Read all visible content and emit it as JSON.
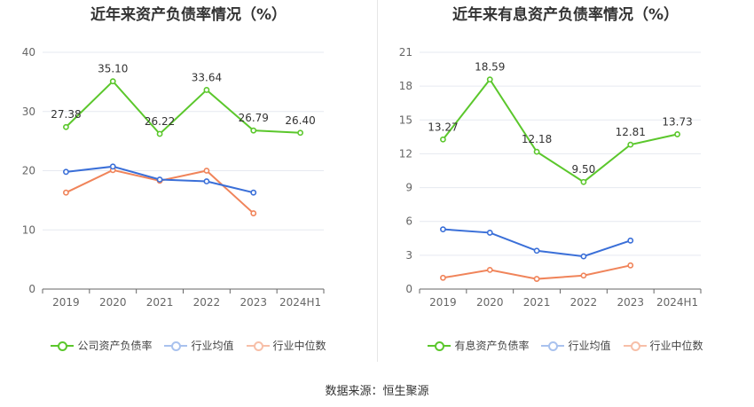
{
  "source": "数据来源：恒生聚源",
  "chart_data": [
    {
      "type": "line",
      "title": "近年来资产负债率情况（%）",
      "categories": [
        "2019",
        "2020",
        "2021",
        "2022",
        "2023",
        "2024H1"
      ],
      "yticks": [
        "0",
        "10",
        "20",
        "30",
        "40"
      ],
      "ylim": [
        0,
        40
      ],
      "grid": true,
      "legend_position": "bottom",
      "series": [
        {
          "name": "公司资产负债率",
          "color": "#5bc72c",
          "values": [
            27.38,
            35.1,
            26.22,
            33.64,
            26.79,
            26.4
          ],
          "labels": [
            "27.38",
            "35.10",
            "26.22",
            "33.64",
            "26.79",
            "26.40"
          ]
        },
        {
          "name": "行业均值",
          "color": "#3a6fd8",
          "values": [
            19.8,
            20.7,
            18.5,
            18.2,
            16.3,
            null
          ]
        },
        {
          "name": "行业中位数",
          "color": "#f0845a",
          "values": [
            16.3,
            20.1,
            18.3,
            20.0,
            12.8,
            null
          ]
        }
      ]
    },
    {
      "type": "line",
      "title": "近年来有息资产负债率情况（%）",
      "categories": [
        "2019",
        "2020",
        "2021",
        "2022",
        "2023",
        "2024H1"
      ],
      "yticks": [
        "0",
        "3",
        "6",
        "9",
        "12",
        "15",
        "18",
        "21"
      ],
      "ylim": [
        0,
        21
      ],
      "grid": true,
      "legend_position": "bottom",
      "series": [
        {
          "name": "有息资产负债率",
          "color": "#5bc72c",
          "values": [
            13.27,
            18.59,
            12.18,
            9.5,
            12.81,
            13.73
          ],
          "labels": [
            "13.27",
            "18.59",
            "12.18",
            "9.50",
            "12.81",
            "13.73"
          ]
        },
        {
          "name": "行业均值",
          "color": "#3a6fd8",
          "values": [
            5.3,
            5.0,
            3.4,
            2.9,
            4.3,
            null
          ]
        },
        {
          "name": "行业中位数",
          "color": "#f0845a",
          "values": [
            1.0,
            1.7,
            0.9,
            1.2,
            2.1,
            null
          ]
        }
      ]
    }
  ]
}
